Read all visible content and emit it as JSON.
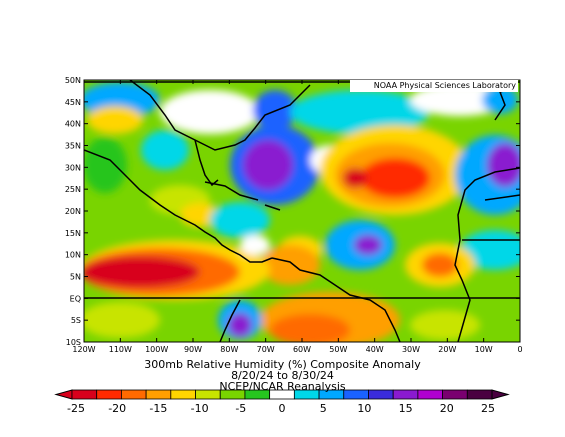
{
  "map": {
    "title_line1": "300mb Relative Humidity (%) Composite Anomaly",
    "title_line2": "8/20/24  to 8/30/24",
    "source": "NCEP/NCAR Reanalysis",
    "credit": "NOAA Physical Sciences Laboratory",
    "lon_labels": [
      "120W",
      "110W",
      "100W",
      "90W",
      "80W",
      "70W",
      "60W",
      "50W",
      "40W",
      "30W",
      "20W",
      "10W",
      "0"
    ],
    "lat_labels": [
      "50N",
      "45N",
      "40N",
      "35N",
      "30N",
      "25N",
      "20N",
      "15N",
      "10N",
      "5N",
      "EQ",
      "5S",
      "10S"
    ],
    "highlight_line": "EQ"
  },
  "colorbar": {
    "labels": [
      "-25",
      "-20",
      "-15",
      "-10",
      "-5",
      "0",
      "5",
      "10",
      "15",
      "20",
      "25"
    ],
    "colors": [
      "#d8001c",
      "#ff2a00",
      "#ff6a00",
      "#ff9f00",
      "#ffd500",
      "#c8e400",
      "#79d400",
      "#26c51f",
      "#ffffff",
      "#00d7e8",
      "#00a8ff",
      "#1a62ff",
      "#3a2bdc",
      "#8a1ad0",
      "#b000d0",
      "#7a0070",
      "#4a0040"
    ],
    "units": "%"
  }
}
